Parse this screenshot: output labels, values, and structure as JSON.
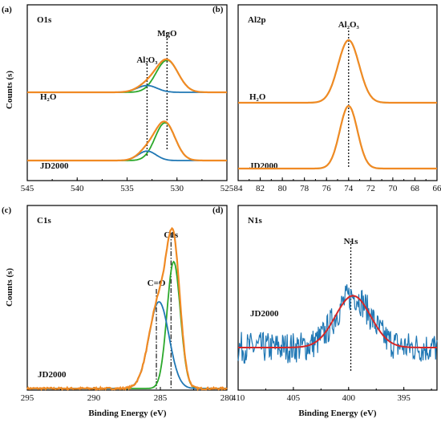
{
  "colors": {
    "envelope": "#F08A24",
    "component_green": "#2BA82B",
    "component_blue": "#1F77B4",
    "background_line": "#1F77B4",
    "fit_red": "#D62728",
    "noisy": "#1F77B4"
  },
  "figure": {
    "xlabel": "Binding Energy (eV)",
    "ylabel": "Counts (s)"
  },
  "chart_data": [
    {
      "id": "a",
      "type": "line",
      "panel_label": "(a)",
      "element_label": "O1s",
      "xlim": [
        545,
        525
      ],
      "x_ticks": [
        545,
        540,
        535,
        530,
        525
      ],
      "reversed_x": true,
      "peaks": [
        {
          "label": "MgO",
          "label_pos": "above",
          "x": 531.0
        },
        {
          "label": "Al2O3",
          "label_display": "Al₂O₃",
          "x": 533.0
        }
      ],
      "series": [
        {
          "name": "H2O",
          "label_display": "H₂O",
          "components": [
            {
              "center": 531.0,
              "amplitude": 0.85,
              "width": 1.1
            },
            {
              "center": 533.0,
              "amplitude": 0.18,
              "width": 1.0
            }
          ]
        },
        {
          "name": "JD2000",
          "components": [
            {
              "center": 531.2,
              "amplitude": 1.0,
              "width": 1.0
            },
            {
              "center": 533.0,
              "amplitude": 0.25,
              "width": 0.9
            }
          ]
        }
      ]
    },
    {
      "id": "b",
      "type": "line",
      "panel_label": "(b)",
      "element_label": "Al2p",
      "xlim": [
        84,
        66
      ],
      "x_ticks": [
        84,
        82,
        80,
        78,
        76,
        74,
        72,
        70,
        68,
        66
      ],
      "reversed_x": true,
      "peaks": [
        {
          "label": "Al2O3",
          "label_display": "Al₂O₃",
          "x": 74.0
        }
      ],
      "series": [
        {
          "name": "H2O",
          "label_display": "H₂O",
          "components": [
            {
              "center": 74.0,
              "amplitude": 1.0,
              "width": 0.95
            }
          ]
        },
        {
          "name": "JD2000",
          "components": [
            {
              "center": 74.0,
              "amplitude": 1.0,
              "width": 0.8
            }
          ]
        }
      ]
    },
    {
      "id": "c",
      "type": "line",
      "panel_label": "(c)",
      "element_label": "C1s",
      "xlim": [
        295,
        280
      ],
      "x_ticks": [
        295,
        290,
        285,
        280
      ],
      "reversed_x": true,
      "peaks": [
        {
          "label": "C1s",
          "x": 284.2
        },
        {
          "label": "C=O",
          "x": 285.3
        }
      ],
      "series": [
        {
          "name": "JD2000",
          "components": [
            {
              "center": 284.0,
              "amplitude": 0.79,
              "width": 0.5
            },
            {
              "center": 285.1,
              "amplitude": 0.54,
              "width": 0.75
            }
          ]
        }
      ]
    },
    {
      "id": "d",
      "type": "line",
      "panel_label": "(d)",
      "element_label": "N1s",
      "xlim": [
        410,
        392
      ],
      "x_ticks": [
        410,
        405,
        400,
        395
      ],
      "reversed_x": true,
      "peaks": [
        {
          "label": "N1s",
          "x": 399.8
        }
      ],
      "series": [
        {
          "name": "JD2000",
          "fit": {
            "baseline": 0.08,
            "center": 399.6,
            "amplitude": 0.43,
            "width": 1.6
          },
          "noise_amplitude": 0.13
        }
      ]
    }
  ]
}
